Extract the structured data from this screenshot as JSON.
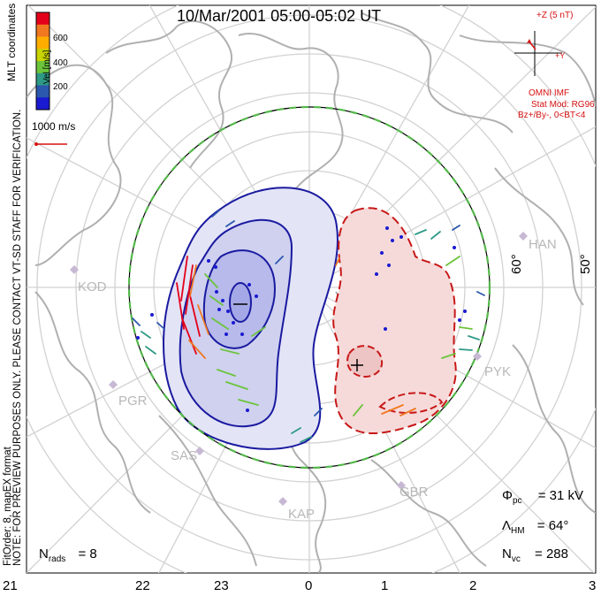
{
  "title": "10/Mar/2001 05:00-05:02 UT",
  "coordinate_label": "MLT coordinates",
  "note_line1": "NOTE: FOR PREVIEW PURPOSES ONLY. PLEASE CONTACT VT-SD STAFF FOR VERIFICATION.",
  "note_line2": "FitOrder: 8,  mapEX format",
  "colorbar": {
    "label": "Vel [m/s]",
    "ticks": [
      "600",
      "400",
      "200"
    ],
    "colors": [
      "#e4001a",
      "#f07820",
      "#ffae00",
      "#c8d400",
      "#6cc43c",
      "#2e9a86",
      "#2b57ad",
      "#1a1ad0"
    ]
  },
  "vector_scale": "1000 m/s",
  "imf": {
    "z_label": "+Z (5 nT)",
    "y_label": "+Y",
    "source": "OMNI IMF",
    "model": "Stat Mod: RG96",
    "condition": "Bz+/By-, 0<BT<4",
    "color": "#d51010"
  },
  "sites": [
    "KOD",
    "PGR",
    "SAS",
    "KAP",
    "GBR",
    "PYK",
    "HAN"
  ],
  "latitude_labels": [
    "60°",
    "50°"
  ],
  "mlt_ticks": [
    "21",
    "22",
    "23",
    "0",
    "1",
    "2",
    "3"
  ],
  "stats": {
    "phi_symbol": "Φ",
    "phi_sub": "pc",
    "phi_value": "= 31 kV",
    "lambda_symbol": "Λ",
    "lambda_sub": "HM",
    "lambda_value": "= 64°",
    "nvc_symbol": "N",
    "nvc_sub": "vc",
    "nvc_value": "= 288",
    "nrads_symbol": "N",
    "nrads_sub": "rads",
    "nrads_value": "= 8"
  },
  "colors": {
    "negative_cell_fill": "#c9cbec",
    "negative_cell_line": "#1a1aa0",
    "positive_cell_fill": "#f4d3d3",
    "positive_cell_line": "#c81818",
    "boundary": "#54b84a",
    "coast": "#b0b0b0"
  }
}
